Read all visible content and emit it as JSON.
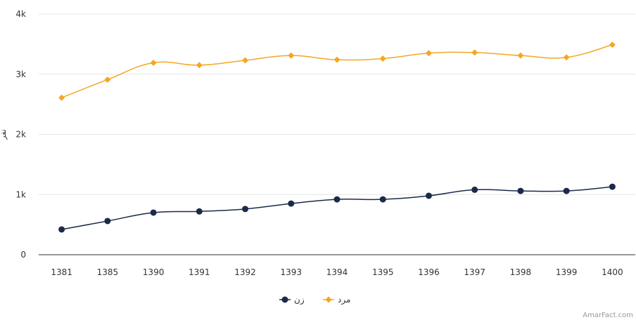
{
  "chart_data": {
    "type": "line",
    "categories": [
      "1381",
      "1385",
      "1390",
      "1391",
      "1392",
      "1393",
      "1394",
      "1395",
      "1396",
      "1397",
      "1398",
      "1399",
      "1400"
    ],
    "series": [
      {
        "name": "زن",
        "color": "#1b2a49",
        "marker": "circle",
        "values": [
          420,
          560,
          700,
          720,
          760,
          850,
          920,
          920,
          980,
          1080,
          1060,
          1060,
          1130
        ]
      },
      {
        "name": "مرد",
        "color": "#f5a623",
        "marker": "diamond",
        "values": [
          2610,
          2910,
          3190,
          3150,
          3230,
          3310,
          3240,
          3260,
          3350,
          3360,
          3310,
          3280,
          3490
        ]
      }
    ],
    "ylabel": "نفر",
    "xlabel": "",
    "ylim": [
      0,
      4000
    ],
    "yticks": [
      {
        "value": 0,
        "label": "0"
      },
      {
        "value": 1000,
        "label": "1k"
      },
      {
        "value": 2000,
        "label": "2k"
      },
      {
        "value": 3000,
        "label": "3k"
      },
      {
        "value": 4000,
        "label": "4k"
      }
    ],
    "grid": true,
    "legend_position": "bottom-center",
    "grid_color": "#e6e6e6",
    "axis_color": "#333333"
  },
  "credit": "AmarFact.com"
}
